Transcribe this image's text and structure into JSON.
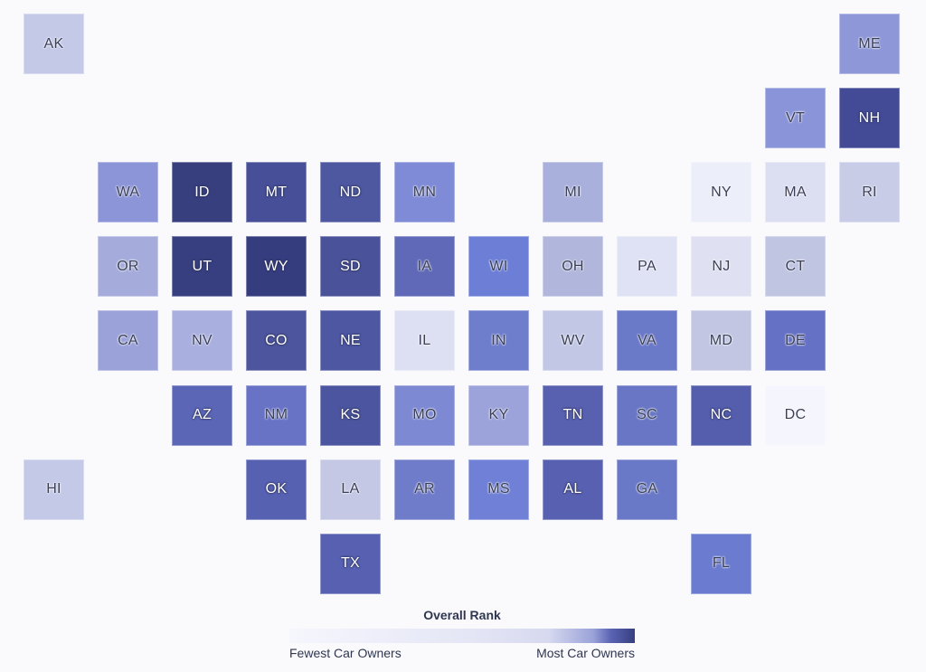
{
  "legend": {
    "title": "Overall Rank",
    "low_label": "Fewest Car Owners",
    "high_label": "Most Car Owners",
    "color_low": "#f6f6fd",
    "color_high": "#373f80"
  },
  "states": [
    {
      "code": "AK",
      "row": 0,
      "col": 0,
      "color": "#c5c9e8"
    },
    {
      "code": "ME",
      "row": 0,
      "col": 11,
      "color": "#8e98d8"
    },
    {
      "code": "VT",
      "row": 1,
      "col": 10,
      "color": "#8a94d8"
    },
    {
      "code": "NH",
      "row": 1,
      "col": 11,
      "color": "#434b97"
    },
    {
      "code": "WA",
      "row": 2,
      "col": 1,
      "color": "#8c95d7"
    },
    {
      "code": "ID",
      "row": 2,
      "col": 2,
      "color": "#373f7f"
    },
    {
      "code": "MT",
      "row": 2,
      "col": 3,
      "color": "#464f98"
    },
    {
      "code": "ND",
      "row": 2,
      "col": 4,
      "color": "#4e58a0"
    },
    {
      "code": "MN",
      "row": 2,
      "col": 5,
      "color": "#7f8bd6"
    },
    {
      "code": "MI",
      "row": 2,
      "col": 7,
      "color": "#a9b0dc"
    },
    {
      "code": "NY",
      "row": 2,
      "col": 9,
      "color": "#eceefa"
    },
    {
      "code": "MA",
      "row": 2,
      "col": 10,
      "color": "#dcdff2"
    },
    {
      "code": "RI",
      "row": 2,
      "col": 11,
      "color": "#c8cce6"
    },
    {
      "code": "OR",
      "row": 3,
      "col": 1,
      "color": "#a5acdc"
    },
    {
      "code": "UT",
      "row": 3,
      "col": 2,
      "color": "#373f80"
    },
    {
      "code": "WY",
      "row": 3,
      "col": 3,
      "color": "#353d7e"
    },
    {
      "code": "SD",
      "row": 3,
      "col": 4,
      "color": "#4a529a"
    },
    {
      "code": "IA",
      "row": 3,
      "col": 5,
      "color": "#5f69b8"
    },
    {
      "code": "WI",
      "row": 3,
      "col": 6,
      "color": "#6c7ed6"
    },
    {
      "code": "OH",
      "row": 3,
      "col": 7,
      "color": "#b0b6dc"
    },
    {
      "code": "PA",
      "row": 3,
      "col": 8,
      "color": "#dfe2f4"
    },
    {
      "code": "NJ",
      "row": 3,
      "col": 9,
      "color": "#dfe1f2"
    },
    {
      "code": "CT",
      "row": 3,
      "col": 10,
      "color": "#c0c5e2"
    },
    {
      "code": "CA",
      "row": 4,
      "col": 1,
      "color": "#9aa2d9"
    },
    {
      "code": "NV",
      "row": 4,
      "col": 2,
      "color": "#a9afdf"
    },
    {
      "code": "CO",
      "row": 4,
      "col": 3,
      "color": "#4c559e"
    },
    {
      "code": "NE",
      "row": 4,
      "col": 4,
      "color": "#4d57a2"
    },
    {
      "code": "IL",
      "row": 4,
      "col": 5,
      "color": "#dde0f2"
    },
    {
      "code": "IN",
      "row": 4,
      "col": 6,
      "color": "#6e7dcc"
    },
    {
      "code": "WV",
      "row": 4,
      "col": 7,
      "color": "#c2c7e5"
    },
    {
      "code": "VA",
      "row": 4,
      "col": 8,
      "color": "#6b79c9"
    },
    {
      "code": "MD",
      "row": 4,
      "col": 9,
      "color": "#c2c6e2"
    },
    {
      "code": "DE",
      "row": 4,
      "col": 10,
      "color": "#6571c4"
    },
    {
      "code": "AZ",
      "row": 5,
      "col": 2,
      "color": "#5b66b7"
    },
    {
      "code": "NM",
      "row": 5,
      "col": 3,
      "color": "#6873c6"
    },
    {
      "code": "KS",
      "row": 5,
      "col": 4,
      "color": "#4c559f"
    },
    {
      "code": "MO",
      "row": 5,
      "col": 5,
      "color": "#7e89d3"
    },
    {
      "code": "KY",
      "row": 5,
      "col": 6,
      "color": "#9ba3da"
    },
    {
      "code": "TN",
      "row": 5,
      "col": 7,
      "color": "#5860b0"
    },
    {
      "code": "SC",
      "row": 5,
      "col": 8,
      "color": "#6876c5"
    },
    {
      "code": "NC",
      "row": 5,
      "col": 9,
      "color": "#545eac"
    },
    {
      "code": "DC",
      "row": 5,
      "col": 10,
      "color": "#f4f5fd"
    },
    {
      "code": "HI",
      "row": 6,
      "col": 0,
      "color": "#c4c9e8"
    },
    {
      "code": "OK",
      "row": 6,
      "col": 3,
      "color": "#5761b2"
    },
    {
      "code": "LA",
      "row": 6,
      "col": 4,
      "color": "#c4c8e5"
    },
    {
      "code": "AR",
      "row": 6,
      "col": 5,
      "color": "#6f7cc9"
    },
    {
      "code": "MS",
      "row": 6,
      "col": 6,
      "color": "#6f80d6"
    },
    {
      "code": "AL",
      "row": 6,
      "col": 7,
      "color": "#5861b1"
    },
    {
      "code": "GA",
      "row": 6,
      "col": 8,
      "color": "#6979c8"
    },
    {
      "code": "TX",
      "row": 7,
      "col": 4,
      "color": "#5760b1"
    },
    {
      "code": "FL",
      "row": 7,
      "col": 9,
      "color": "#6b7bcf"
    }
  ]
}
